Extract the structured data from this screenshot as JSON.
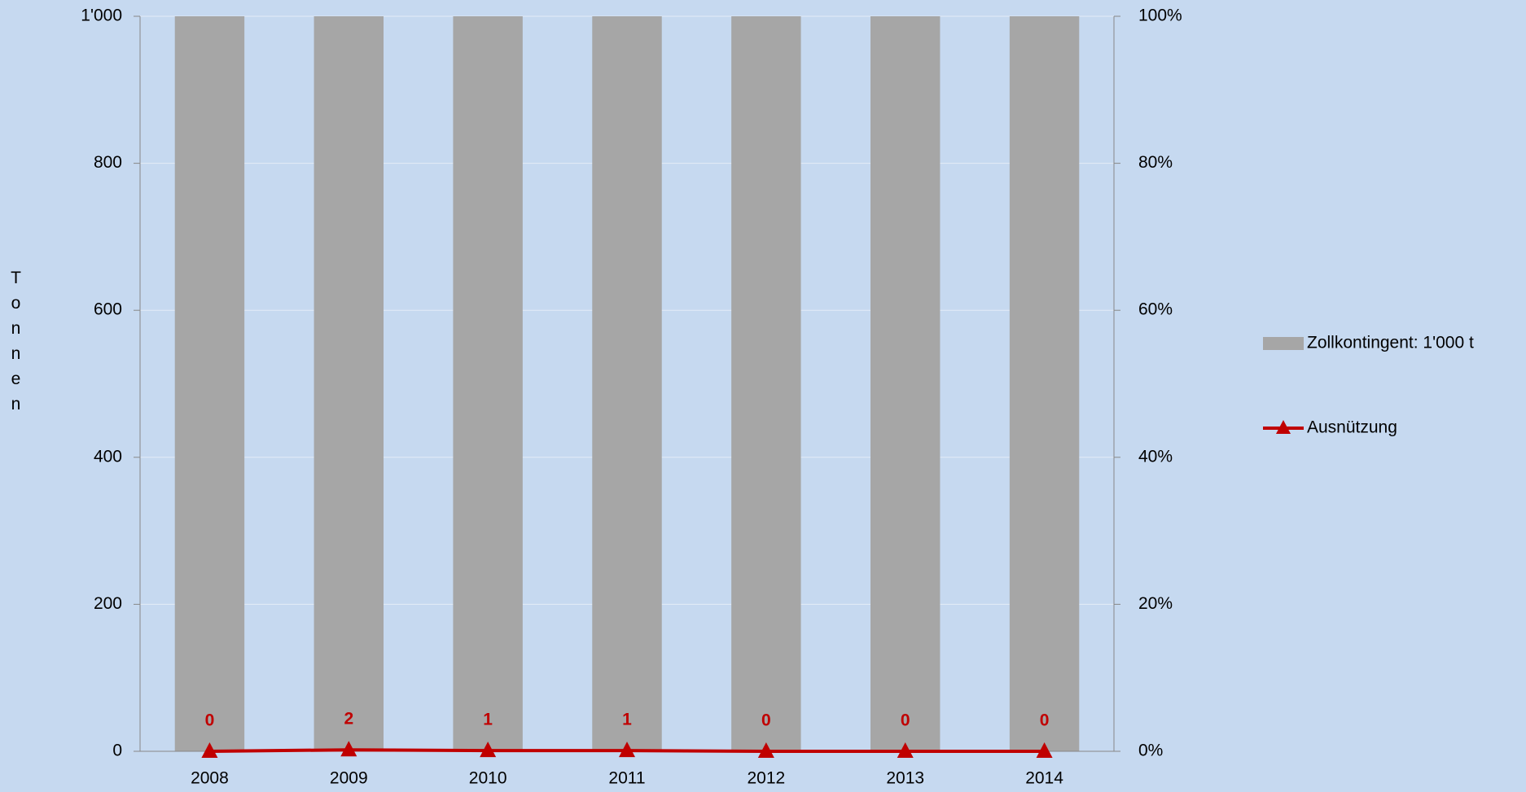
{
  "chart_data": {
    "type": "bar-line",
    "y_label": "Tonnen",
    "categories": [
      "2008",
      "2009",
      "2010",
      "2011",
      "2012",
      "2013",
      "2014"
    ],
    "series": [
      {
        "name": "Zollkontingent: 1'000 t",
        "type": "bar",
        "color": "#a6a6a6",
        "values": [
          1000,
          1000,
          1000,
          1000,
          1000,
          1000,
          1000
        ]
      },
      {
        "name": "Ausnützung",
        "type": "line",
        "color": "#c00000",
        "values": [
          0,
          2,
          1,
          1,
          0,
          0,
          0
        ]
      }
    ],
    "ylim": [
      0,
      1000
    ],
    "yticks": [
      0,
      200,
      400,
      600,
      800,
      {
        "value": 1000,
        "label": "1'000"
      }
    ],
    "y2lim": [
      0,
      100
    ],
    "y2ticks": [
      {
        "value": 0,
        "label": "0%"
      },
      {
        "value": 20,
        "label": "20%"
      },
      {
        "value": 40,
        "label": "40%"
      },
      {
        "value": 60,
        "label": "60%"
      },
      {
        "value": 80,
        "label": "80%"
      },
      {
        "value": 100,
        "label": "100%"
      }
    ],
    "grid": true
  }
}
